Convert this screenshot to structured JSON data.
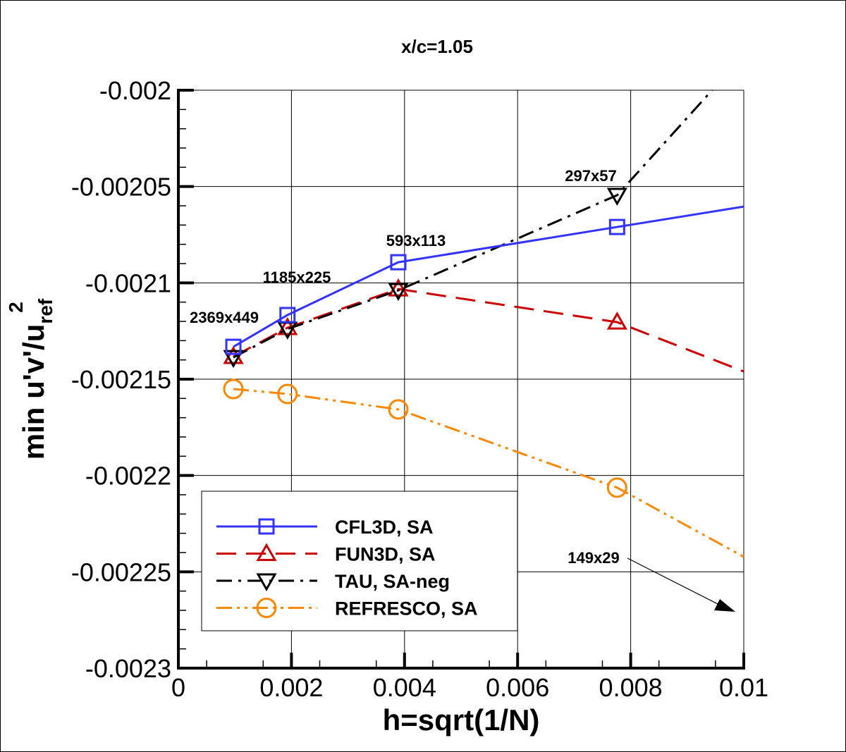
{
  "chart_data": {
    "type": "line",
    "title": "x/c=1.05",
    "xlabel": "h=sqrt(1/N)",
    "ylabel": {
      "main": "min u'v'/u",
      "subscript": "ref",
      "superscript": "2"
    },
    "xlim": [
      0,
      0.01
    ],
    "ylim": [
      -0.0023,
      -0.002
    ],
    "xticks": [
      0,
      0.002,
      0.004,
      0.006,
      0.008,
      0.01
    ],
    "xtick_labels": [
      "0",
      "0.002",
      "0.004",
      "0.006",
      "0.008",
      "0.01"
    ],
    "yticks": [
      -0.002,
      -0.00205,
      -0.0021,
      -0.00215,
      -0.0022,
      -0.00225,
      -0.0023
    ],
    "ytick_labels": [
      "-0.002",
      "-0.00205",
      "-0.0021",
      "-0.00215",
      "-0.0022",
      "-0.00225",
      "-0.0023"
    ],
    "grid": true,
    "legend_position": "bottom-left",
    "series": [
      {
        "name": "CFL3D, SA",
        "color": "#3333ff",
        "marker": "square",
        "dash": "solid",
        "x": [
          0.000973,
          0.00193,
          0.00389,
          0.00776
        ],
        "y": [
          -0.0021332,
          -0.0021167,
          -0.0020893,
          -0.002071
        ],
        "extrapolation": {
          "x": [
            0.00776,
            0.01
          ],
          "y": [
            -0.002071,
            -0.0020604
          ]
        }
      },
      {
        "name": "FUN3D, SA",
        "color": "#cc0000",
        "marker": "triangle-up",
        "dash": "dashed",
        "x": [
          0.000973,
          0.00193,
          0.00389,
          0.00776
        ],
        "y": [
          -0.0021383,
          -0.0021233,
          -0.0021032,
          -0.0021204
        ],
        "extrapolation": {
          "x": [
            0.00776,
            0.01
          ],
          "y": [
            -0.0021204,
            -0.002146
          ]
        }
      },
      {
        "name": "TAU, SA-neg",
        "color": "#000000",
        "marker": "triangle-down",
        "dash": "dashdot",
        "x": [
          0.000973,
          0.00193,
          0.00389,
          0.00776
        ],
        "y": [
          -0.0021387,
          -0.002124,
          -0.0021039,
          -0.0020545
        ],
        "extrapolation": {
          "x": [
            0.00776,
            0.00944
          ],
          "y": [
            -0.0020545,
            -0.002
          ]
        }
      },
      {
        "name": "REFRESCO, SA",
        "color": "#ff8800",
        "marker": "circle",
        "dash": "dashdotdot",
        "x": [
          0.000973,
          0.00193,
          0.00389,
          0.00776
        ],
        "y": [
          -0.0021551,
          -0.0021577,
          -0.0021657,
          -0.0022063
        ],
        "extrapolation": {
          "x": [
            0.00776,
            0.01
          ],
          "y": [
            -0.0022063,
            -0.0022422
          ]
        }
      }
    ],
    "annotations": [
      {
        "text": "2369x449",
        "x": 0.000973
      },
      {
        "text": "1185x225",
        "x": 0.00193
      },
      {
        "text": "593x113",
        "x": 0.00389
      },
      {
        "text": "297x57",
        "x": 0.00776
      },
      {
        "text": "149x29",
        "arrow": true
      }
    ]
  }
}
